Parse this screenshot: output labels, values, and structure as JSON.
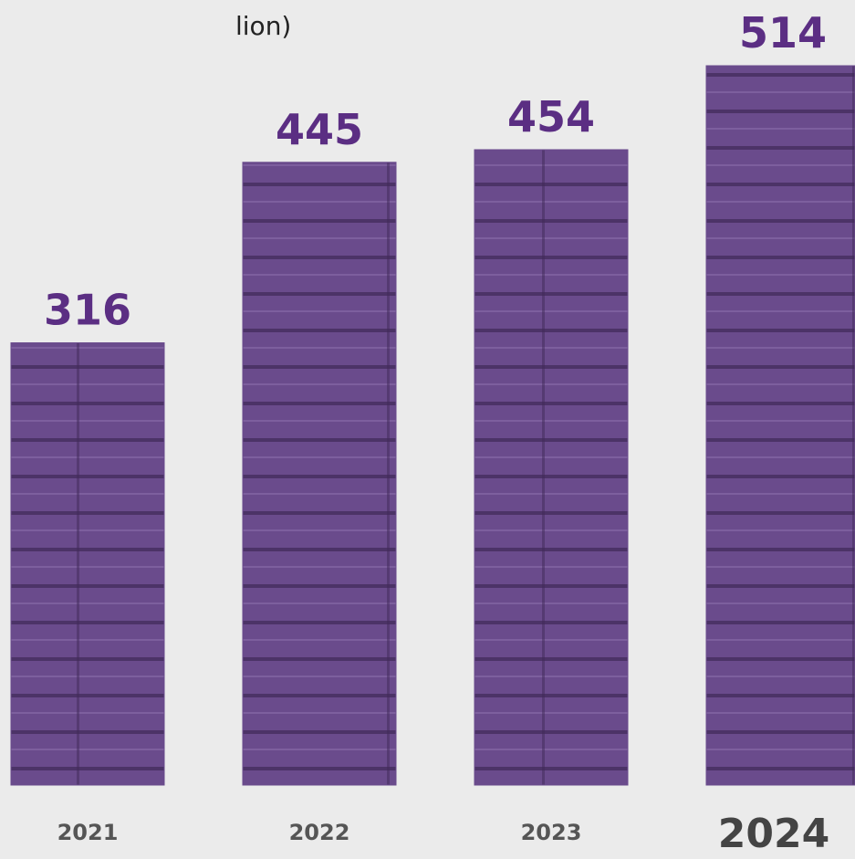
{
  "chart_data": {
    "type": "bar",
    "title": "lion)",
    "categories": [
      "2021",
      "2022",
      "2023",
      "2024"
    ],
    "values": [
      316,
      445,
      454,
      514
    ],
    "color": "#6a4b8c",
    "label_color": "#5b2e83"
  }
}
